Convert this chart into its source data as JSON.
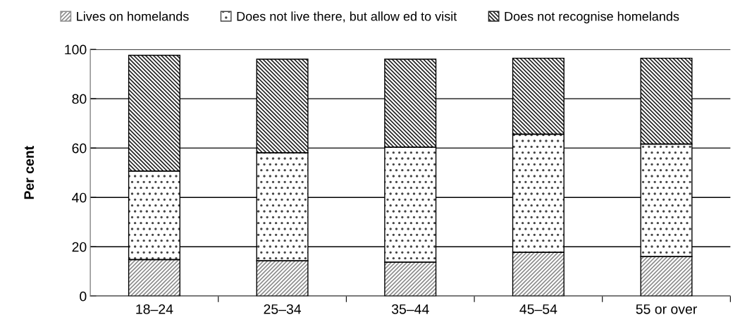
{
  "chart_data": {
    "type": "bar",
    "stacked": true,
    "ylabel": "Per cent",
    "categories": [
      "18–24",
      "25–34",
      "35–44",
      "45–54",
      "55 or over"
    ],
    "series": [
      {
        "name": "Lives on homelands",
        "color": "#8c8c8c",
        "values": [
          14.8,
          14.3,
          13.7,
          17.7,
          16.0
        ]
      },
      {
        "name": "Does not live there, but allow ed to visit",
        "color": "#ffffff",
        "values": [
          35.9,
          43.8,
          46.7,
          47.9,
          45.6
        ]
      },
      {
        "name": "Does not recognise homelands",
        "color": "#222222",
        "values": [
          46.9,
          37.9,
          35.6,
          30.8,
          34.8
        ]
      }
    ],
    "ylim": [
      0,
      100
    ],
    "yticks": [
      0,
      20,
      40,
      60,
      80,
      100
    ],
    "grid": "y",
    "legend": "top"
  }
}
